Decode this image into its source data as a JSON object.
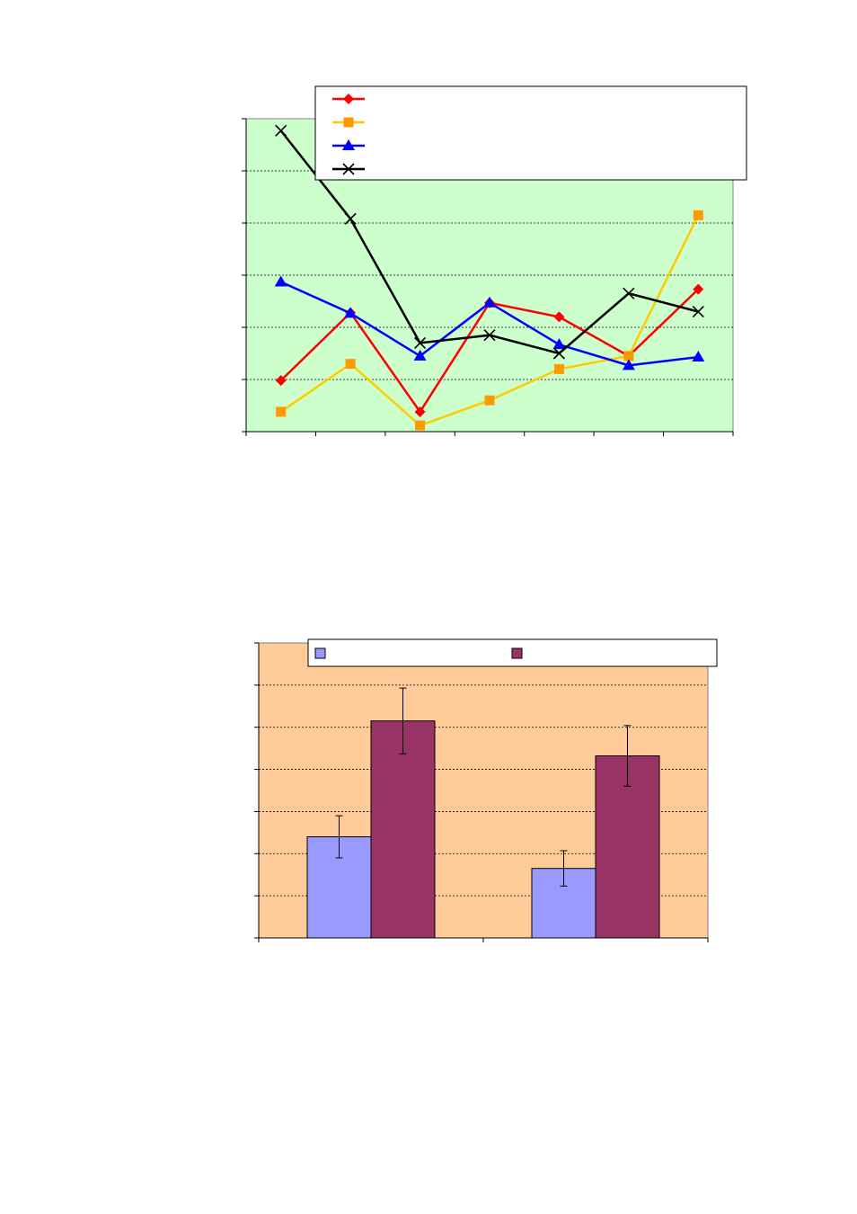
{
  "colors": {
    "line_plot_bg": "#ccffcc",
    "bar_plot_bg": "#ffcc99",
    "gridline": "#000000"
  },
  "chart_data": [
    {
      "type": "line",
      "title": "",
      "xlabel": "",
      "ylabel": "",
      "ylim": [
        0,
        6
      ],
      "y_gridlines": [
        1,
        2,
        3,
        4,
        5
      ],
      "grid": true,
      "legend_position": "top-right",
      "x": [
        1,
        2,
        3,
        4,
        5,
        6,
        7
      ],
      "series": [
        {
          "color": "#ff0000",
          "marker": "diamond",
          "values": [
            0.98,
            2.28,
            0.38,
            2.47,
            2.2,
            1.45,
            2.73
          ]
        },
        {
          "color": "#ffcc00",
          "marker_color": "#ff9900",
          "marker": "square",
          "values": [
            0.38,
            1.3,
            0.12,
            0.6,
            1.2,
            1.45,
            4.15
          ]
        },
        {
          "color": "#0000ff",
          "marker": "triangle",
          "values": [
            2.87,
            2.27,
            1.45,
            2.47,
            1.67,
            1.27,
            1.43
          ]
        },
        {
          "color": "#000000",
          "marker": "x",
          "values": [
            5.77,
            4.08,
            1.7,
            1.85,
            1.5,
            2.65,
            2.3
          ]
        }
      ]
    },
    {
      "type": "bar",
      "title": "",
      "xlabel": "",
      "ylabel": "",
      "ylim": [
        0,
        7
      ],
      "y_gridlines": [
        1,
        2,
        3,
        4,
        5,
        6
      ],
      "grid": true,
      "legend_position": "top",
      "categories": [
        "",
        ""
      ],
      "series": [
        {
          "color": "#9999ff",
          "values": [
            2.4,
            1.65
          ],
          "errors": [
            0.5,
            0.42
          ]
        },
        {
          "color": "#993366",
          "values": [
            5.15,
            4.32
          ],
          "errors": [
            0.78,
            0.72
          ]
        }
      ]
    }
  ]
}
